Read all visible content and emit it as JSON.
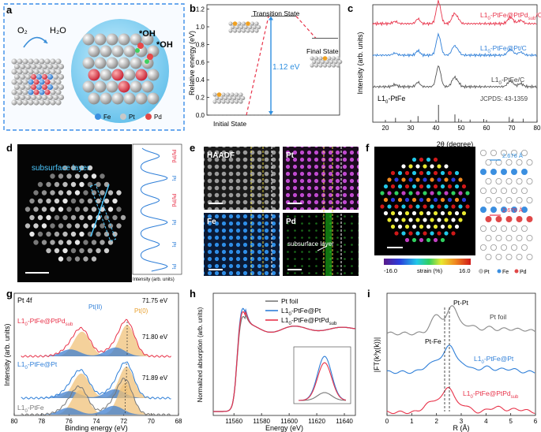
{
  "panels": {
    "a": {
      "label": "a",
      "o2": "O₂",
      "h2o": "H₂O",
      "oh1": "*OH",
      "oh2": "*OH",
      "legend": [
        {
          "name": "Fe",
          "color": "#3b8fe0"
        },
        {
          "name": "Pt",
          "color": "#c8c8c8"
        },
        {
          "name": "Pd",
          "color": "#e04848"
        }
      ]
    },
    "b": {
      "label": "b",
      "ylabel": "Relative energy (eV)",
      "yticks": [
        "0.0",
        "0.2",
        "0.4",
        "0.6",
        "0.8",
        "1.0",
        "1.2"
      ],
      "ylim": [
        0,
        1.25
      ],
      "states": [
        "Initial State",
        "Transition State",
        "Final State"
      ],
      "barrier": "1.12 eV",
      "chart_data": {
        "type": "line",
        "title": "",
        "ylabel": "Relative energy (eV)",
        "points": [
          {
            "state": "Initial State",
            "y": 0.0
          },
          {
            "state": "Transition State",
            "y": 1.12
          },
          {
            "state": "Final State",
            "y": 0.87
          }
        ]
      }
    },
    "c": {
      "label": "c",
      "ylabel": "Intensity (arb. units)",
      "xlabel": "2θ (degree)",
      "xticks": [
        "20",
        "30",
        "40",
        "50",
        "60",
        "70",
        "80"
      ],
      "xlim": [
        15,
        80
      ],
      "series": [
        {
          "name": "L1₀-PtFe@PtPd_sub/C",
          "main": "L1",
          "sub": "0",
          "rest": "-PtFe@PtPd",
          "sub2": "sub",
          "tail": "/C",
          "color": "#e8334a"
        },
        {
          "name": "L1₀-PtFe@Pt/C",
          "main": "L1",
          "sub": "0",
          "rest": "-PtFe@Pt/C",
          "color": "#2f7fd8"
        },
        {
          "name": "L1₀-PtFe/C",
          "main": "L1",
          "sub": "0",
          "rest": "-PtFe/C",
          "color": "#555555"
        }
      ],
      "ref_label_main": "L1",
      "ref_label_sub": "0",
      "ref_label_rest": "-PtFe",
      "jcpds": "JCPDS: 43-1359",
      "ref_peaks": [
        {
          "x": 24.0,
          "h": 0.25
        },
        {
          "x": 32.9,
          "h": 0.35
        },
        {
          "x": 41.0,
          "h": 1.0
        },
        {
          "x": 47.5,
          "h": 0.45
        },
        {
          "x": 49.0,
          "h": 0.2
        },
        {
          "x": 53.5,
          "h": 0.15
        },
        {
          "x": 58.9,
          "h": 0.18
        },
        {
          "x": 69.0,
          "h": 0.3
        },
        {
          "x": 70.5,
          "h": 0.2
        },
        {
          "x": 74.5,
          "h": 0.2
        }
      ],
      "peaks": [
        {
          "x": 23.8,
          "h": 0.1,
          "w": 0.9
        },
        {
          "x": 32.9,
          "h": 0.22,
          "w": 0.8
        },
        {
          "x": 41.0,
          "h": 1.0,
          "w": 0.9
        },
        {
          "x": 47.3,
          "h": 0.45,
          "w": 1.0
        },
        {
          "x": 49.0,
          "h": 0.12,
          "w": 0.7
        },
        {
          "x": 69.5,
          "h": 0.28,
          "w": 1.1
        },
        {
          "x": 73.5,
          "h": 0.15,
          "w": 1.0
        }
      ]
    },
    "d": {
      "label": "d",
      "title": "subsurface layer",
      "profile_labels": [
        "Pt/Pd",
        "Pt",
        "Pt/Pd",
        "Pt",
        "Pt",
        "Pt"
      ],
      "xlabel": "Intensity (arb. units)"
    },
    "e": {
      "label": "e",
      "tiles": [
        "HAADF",
        "Pt",
        "Fe",
        "Pd"
      ],
      "note": "subsurface layer"
    },
    "f": {
      "label": "f",
      "strain_label": "strain (%)",
      "strain_min": "-16.0",
      "strain_max": "16.0",
      "d1": "2.676 Å",
      "d2": "2.676 Å",
      "legend": [
        {
          "name": "Pt",
          "color": "#c8c8c8"
        },
        {
          "name": "Fe",
          "color": "#3b8fe0"
        },
        {
          "name": "Pd",
          "color": "#e04848"
        }
      ]
    },
    "g": {
      "label": "g",
      "title": "Pt 4f",
      "ylabel": "Intensity (arb. units)",
      "xlabel": "Binding energy (eV)",
      "xticks": [
        "80",
        "78",
        "76",
        "74",
        "72",
        "70",
        "68"
      ],
      "xlim": [
        80,
        68
      ],
      "pt2": "Pt(II)",
      "pt0": "Pt(0)",
      "samples": [
        {
          "main": "L1",
          "sub": "0",
          "rest": "-PtFe@PtPd",
          "sub2": "sub",
          "peak": "71.75 eV",
          "color": "#e8334a"
        },
        {
          "main": "L1",
          "sub": "0",
          "rest": "-PtFe@Pt",
          "peak": "71.80 eV",
          "color": "#2f7fd8"
        },
        {
          "main": "L1",
          "sub": "0",
          "rest": "-PtFe",
          "peak": "71.89 eV",
          "color": "#777777"
        }
      ]
    },
    "h": {
      "label": "h",
      "ylabel": "Normalized absorption (arb. units)",
      "xlabel": "Energy (eV)",
      "xticks": [
        "11560",
        "11580",
        "11600",
        "11620",
        "11640"
      ],
      "xlim": [
        11545,
        11648
      ],
      "legend": [
        {
          "text": "Pt foil",
          "color": "#7a7a7a"
        },
        {
          "text_main": "L1",
          "sub": "0",
          "rest": "-PtFe@Pt",
          "color": "#2f7fd8"
        },
        {
          "text_main": "L1",
          "sub": "0",
          "rest": "-PtFe@PtPd",
          "sub2": "sub",
          "color": "#e8334a"
        }
      ]
    },
    "i": {
      "label": "i",
      "ylabel": "|FT(k³χ(k))|",
      "xlabel": "R (Å)",
      "xticks": [
        "0",
        "1",
        "2",
        "3",
        "4",
        "5",
        "6"
      ],
      "xlim": [
        0,
        6
      ],
      "ptpt": "Pt-Pt",
      "ptfe": "Pt-Fe",
      "series": [
        {
          "text": "Pt foil",
          "color": "#888888"
        },
        {
          "text_main": "L1",
          "sub": "0",
          "rest": "-PtFe@Pt",
          "color": "#2f7fd8"
        },
        {
          "text_main": "L1",
          "sub": "0",
          "rest": "-PtFe@PtPd",
          "sub2": "sub",
          "color": "#e8334a"
        }
      ]
    }
  }
}
